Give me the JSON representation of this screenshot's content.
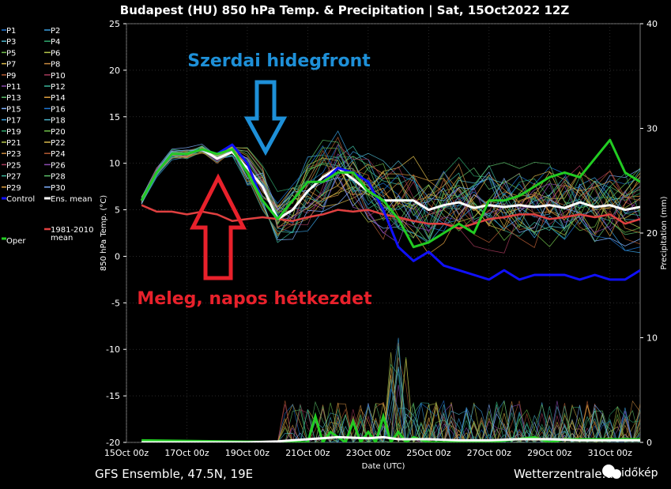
{
  "title": "Budapest  (HU)  850 hPa Temp. & Precipitation | Sat, 15Oct2022 12Z",
  "footer_left": "GFS Ensemble, 47.5N, 19E",
  "footer_right": "Wetterzentrale.de",
  "watermark": "időkép",
  "annotations": {
    "cold_front": "Szerdai hidegfront",
    "warm_start": "Meleg, napos hétkezdet"
  },
  "colors": {
    "annotation_blue": "#1e90d8",
    "annotation_red": "#e8212b",
    "control": "#1010ff",
    "oper": "#22cc22",
    "ens_mean": "#ffffff",
    "climate_mean": "#e04040"
  },
  "legend": {
    "col1": [
      "P1",
      "P3",
      "P5",
      "P7",
      "P9",
      "P11",
      "P13",
      "P15",
      "P17",
      "P19",
      "P21",
      "P23",
      "P25",
      "P27",
      "P29",
      "Control"
    ],
    "col2": [
      "P2",
      "P4",
      "P6",
      "P8",
      "P10",
      "P12",
      "P14",
      "P16",
      "P18",
      "P20",
      "P22",
      "P24",
      "P26",
      "P28",
      "P30",
      "Ens. mean"
    ],
    "oper": "Oper",
    "clim": [
      "1981-2010",
      "mean"
    ]
  },
  "chart_data": {
    "type": "line",
    "title": "Budapest  (HU)  850 hPa Temp. & Precipitation | Sat, 15Oct2022 12Z",
    "xlabel": "Date (UTC)",
    "ylabel": "850 hPa Temp. (°C)",
    "y2label": "Precipitation (mm)",
    "x_ticks": [
      "15Oct 00z",
      "17Oct 00z",
      "19Oct 00z",
      "21Oct 00z",
      "23Oct 00z",
      "25Oct 00z",
      "27Oct 00z",
      "29Oct 00z",
      "31Oct 00z"
    ],
    "ylim": [
      -20,
      25
    ],
    "y_ticks": [
      25,
      20,
      15,
      10,
      5,
      0,
      -5,
      -10,
      -15,
      -20
    ],
    "y2lim": [
      0,
      40
    ],
    "y2_ticks": [
      40,
      30,
      20,
      10,
      0
    ],
    "x_day_range": [
      0,
      17
    ],
    "series": [
      {
        "name": "Ens. mean",
        "x": [
          0.5,
          1,
          1.5,
          2,
          2.5,
          3,
          3.5,
          4,
          4.5,
          5,
          5.5,
          6,
          6.5,
          7,
          7.5,
          8,
          8.5,
          9,
          9.5,
          10,
          10.5,
          11,
          11.5,
          12,
          12.5,
          13,
          13.5,
          14,
          14.5,
          15,
          15.5,
          16,
          16.5,
          17
        ],
        "values": [
          6,
          9,
          11,
          11,
          11.5,
          10.5,
          11.2,
          9.5,
          7.5,
          4,
          5,
          7,
          8.5,
          9.5,
          8.3,
          7,
          6,
          6,
          6,
          5,
          5.5,
          5.8,
          5.2,
          5.5,
          5.3,
          5.5,
          5.3,
          5.5,
          5.2,
          5.8,
          5.3,
          5.5,
          5,
          5.3
        ]
      },
      {
        "name": "Control",
        "x": [
          0.5,
          1,
          1.5,
          2,
          2.5,
          3,
          3.5,
          4,
          4.5,
          5,
          5.5,
          6,
          6.5,
          7,
          7.5,
          8,
          8.5,
          9,
          9.5,
          10,
          10.5,
          11,
          11.5,
          12,
          12.5,
          13,
          13.5,
          14,
          14.5,
          15,
          15.5,
          16,
          16.5,
          17
        ],
        "values": [
          6,
          9,
          11,
          11,
          11.5,
          11,
          12,
          10,
          6,
          4,
          6,
          8,
          8,
          9.5,
          9,
          8,
          5,
          1,
          -0.5,
          0.5,
          -1,
          -1.5,
          -2,
          -2.5,
          -1.5,
          -2.5,
          -2,
          -2,
          -2,
          -2.5,
          -2,
          -2.5,
          -2.5,
          -1.5
        ]
      },
      {
        "name": "Oper",
        "x": [
          0.5,
          1,
          1.5,
          2,
          2.5,
          3,
          3.5,
          4,
          4.5,
          5,
          5.5,
          6,
          6.5,
          7,
          7.5,
          8,
          8.5,
          9,
          9.5,
          10,
          10.5,
          11,
          11.5,
          12,
          12.5,
          13,
          13.5,
          14,
          14.5,
          15,
          15.5,
          16,
          16.5,
          17
        ],
        "values": [
          6,
          9,
          11,
          11,
          11.5,
          11,
          11.5,
          9,
          6,
          4,
          6,
          8,
          8,
          9,
          9,
          7,
          6,
          4,
          1,
          1.5,
          2.5,
          3.5,
          2.5,
          6,
          6,
          6.5,
          7.5,
          8.5,
          9,
          8.5,
          10.5,
          12.5,
          9,
          8
        ]
      },
      {
        "name": "1981-2010 mean",
        "x": [
          0.5,
          1,
          1.5,
          2,
          2.5,
          3,
          3.5,
          4,
          4.5,
          5,
          5.5,
          6,
          6.5,
          7,
          7.5,
          8,
          8.5,
          9,
          9.5,
          10,
          10.5,
          11,
          11.5,
          12,
          12.5,
          13,
          13.5,
          14,
          14.5,
          15,
          15.5,
          16,
          16.5,
          17
        ],
        "values": [
          5.5,
          4.8,
          4.8,
          4.5,
          4.8,
          4.5,
          3.8,
          4,
          4.2,
          4,
          3.8,
          4.2,
          4.5,
          5,
          4.8,
          5,
          4.5,
          4.2,
          3.8,
          3.5,
          3.5,
          3,
          3.5,
          4,
          4.2,
          4.5,
          4.5,
          4,
          4.2,
          4.5,
          4.2,
          4.5,
          3.5,
          4
        ]
      }
    ],
    "precip_series": [
      {
        "name": "Oper precip",
        "x": [
          0.5,
          6,
          6.25,
          6.5,
          6.75,
          7,
          7.25,
          7.5,
          7.75,
          8,
          8.25,
          8.5,
          8.75,
          9,
          9.25,
          9.5,
          10,
          12,
          13.5,
          14,
          14.5,
          17
        ],
        "values": [
          0.2,
          0,
          2.5,
          0,
          1,
          0.5,
          0,
          2,
          0,
          1,
          0,
          2.5,
          0,
          1,
          0,
          0.5,
          0,
          0,
          0.5,
          0,
          0.3,
          0.3
        ]
      },
      {
        "name": "Ens. mean precip",
        "x": [
          0.5,
          4,
          5,
          6,
          7,
          8,
          8.5,
          9,
          10,
          11,
          12,
          13,
          14,
          15,
          16,
          17
        ],
        "values": [
          0,
          0,
          0.1,
          0.3,
          0.5,
          0.4,
          0.5,
          0.3,
          0.3,
          0.2,
          0.2,
          0.3,
          0.3,
          0.2,
          0.2,
          0.2
        ]
      }
    ]
  }
}
